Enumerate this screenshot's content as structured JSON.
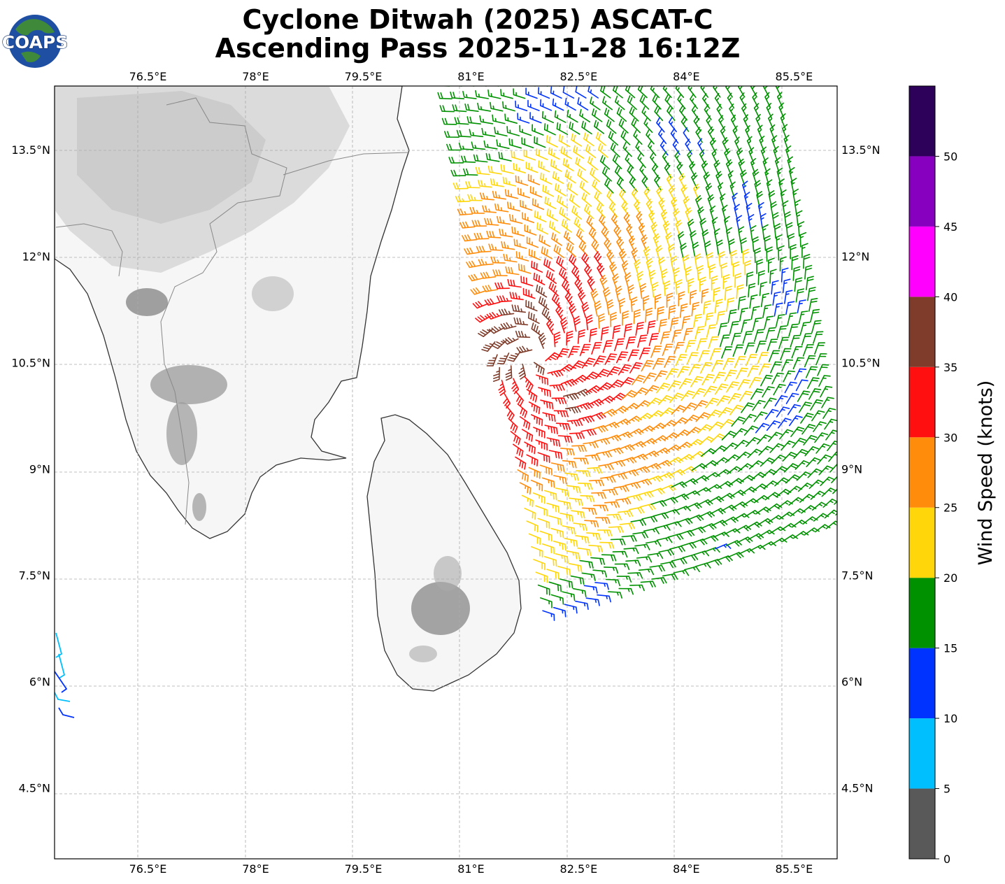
{
  "logo": {
    "text": "COAPS"
  },
  "title": {
    "line1": "Cyclone Ditwah (2025) ASCAT-C",
    "line2": "Ascending Pass 2025-11-28 16:12Z"
  },
  "chart_data": {
    "type": "map",
    "projection": "plate-carree",
    "lon_range": [
      75.2,
      86.1
    ],
    "lat_range": [
      3.5,
      14.4
    ],
    "gridlines": true,
    "lon_ticks": [
      76.5,
      78,
      79.5,
      81,
      82.5,
      84,
      85.5
    ],
    "lat_ticks": [
      4.5,
      6,
      7.5,
      9,
      10.5,
      12,
      13.5
    ],
    "lon_tick_labels": [
      "76.5°E",
      "78°E",
      "79.5°E",
      "81°E",
      "82.5°E",
      "84°E",
      "85.5°E"
    ],
    "lat_tick_labels": [
      "4.5°N",
      "6°N",
      "7.5°N",
      "9°N",
      "10.5°N",
      "12°N",
      "13.5°N"
    ],
    "colorbar": {
      "label": "Wind Speed (knots)",
      "tick_labels": [
        "0",
        "5",
        "10",
        "15",
        "20",
        "25",
        "30",
        "35",
        "40",
        "45",
        "50"
      ],
      "bounds": [
        0,
        5,
        10,
        15,
        20,
        25,
        30,
        35,
        40,
        45,
        50,
        55
      ],
      "colors": [
        "#595959",
        "#00bfff",
        "#0033ff",
        "#009100",
        "#ffd60a",
        "#ff8c0a",
        "#ff0f0f",
        "#7f3c2a",
        "#ff00ff",
        "#8700c0",
        "#2d0059"
      ]
    },
    "storm_center": {
      "lon": 81.9,
      "lat": 10.6
    },
    "swath": {
      "corners_lonlat": [
        [
          80.7,
          14.4
        ],
        [
          85.3,
          14.4
        ],
        [
          86.1,
          8.2
        ],
        [
          82.0,
          7.0
        ]
      ],
      "rows": 42,
      "cols": 28
    }
  }
}
